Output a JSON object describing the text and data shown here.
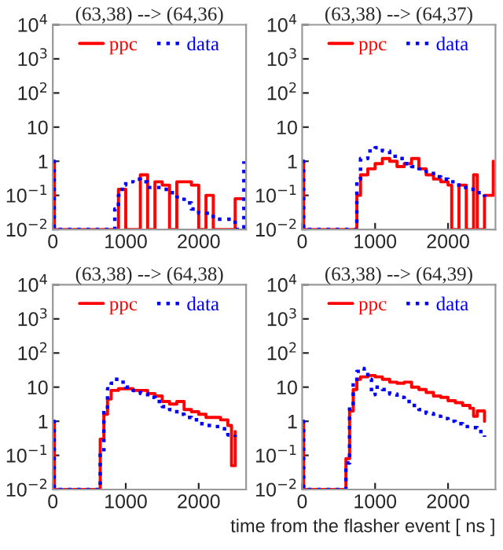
{
  "chart_data": [
    {
      "type": "step",
      "log": true,
      "title": "(63,38) --> (64,36)",
      "legend": "top",
      "grid": false,
      "xlim": [
        0,
        2650
      ],
      "ylim": [
        0.01,
        10000
      ],
      "xticks": [
        0,
        1000,
        2000
      ],
      "yticks": [
        {
          "value": 0.01,
          "label": "10$^{−2}$"
        },
        {
          "value": 0.1,
          "label": "10$^{−1}$"
        },
        1,
        10,
        {
          "value": 100,
          "label": "10$^{2}$"
        },
        {
          "value": 1000,
          "label": "10$^{3}$"
        },
        {
          "value": 10000,
          "label": "10$^{4}$"
        }
      ],
      "series": [
        {
          "name": "ppc",
          "color": "#ff0000",
          "line_style": "solid",
          "x": [
            0,
            20,
            900,
            1000,
            1200,
            1300,
            1400,
            1500,
            1600,
            1700,
            1800,
            1900,
            2000,
            2100,
            2200,
            2500,
            2600
          ],
          "values": [
            1,
            0.01,
            0.15,
            0.01,
            0.4,
            0.01,
            0.25,
            0.2,
            0.01,
            0.25,
            0.25,
            0.2,
            0.01,
            0.1,
            0.01,
            0.08,
            0.08
          ]
        },
        {
          "name": "data",
          "color": "#0000ff",
          "line_style": "dotted",
          "x": [
            0,
            20,
            800,
            850,
            900,
            950,
            1000,
            1100,
            1200,
            1300,
            1400,
            1500,
            1600,
            1700,
            1800,
            1900,
            2000,
            2100,
            2200,
            2300,
            2400,
            2500,
            2620
          ],
          "values": [
            1,
            0.01,
            0.01,
            0.04,
            0.1,
            0.2,
            0.25,
            0.3,
            0.25,
            0.17,
            0.17,
            0.15,
            0.12,
            0.09,
            0.06,
            0.04,
            0.03,
            0.03,
            0.02,
            0.02,
            0.02,
            0.01,
            1
          ]
        }
      ]
    },
    {
      "type": "step",
      "log": true,
      "title": "(63,38) --> (64,37)",
      "legend": "top",
      "grid": false,
      "xlim": [
        0,
        2650
      ],
      "ylim": [
        0.01,
        10000
      ],
      "xticks": [
        0,
        1000,
        2000
      ],
      "yticks": [
        {
          "value": 0.01,
          "label": "10$^{−2}$"
        },
        {
          "value": 0.1,
          "label": "10$^{−1}$"
        },
        1,
        10,
        {
          "value": 100,
          "label": "10$^{2}$"
        },
        {
          "value": 1000,
          "label": "10$^{3}$"
        },
        {
          "value": 10000,
          "label": "10$^{4}$"
        }
      ],
      "series": [
        {
          "name": "ppc",
          "color": "#ff0000",
          "line_style": "solid",
          "x": [
            0,
            20,
            730,
            750,
            800,
            900,
            1000,
            1100,
            1200,
            1300,
            1400,
            1500,
            1600,
            1700,
            1800,
            1900,
            2000,
            2050,
            2150,
            2250,
            2350,
            2400,
            2500,
            2620
          ],
          "values": [
            1,
            0.01,
            0.01,
            0.1,
            0.4,
            0.6,
            0.85,
            1.2,
            1,
            0.7,
            0.85,
            1.2,
            0.6,
            0.4,
            0.3,
            0.25,
            0.2,
            0.01,
            0.2,
            0.01,
            0.4,
            0.01,
            0.1,
            1
          ]
        },
        {
          "name": "data",
          "color": "#0000ff",
          "line_style": "dotted",
          "x": [
            0,
            20,
            700,
            750,
            800,
            900,
            1000,
            1100,
            1200,
            1300,
            1400,
            1500,
            1600,
            1700,
            1800,
            1900,
            2000,
            2100,
            2200,
            2300,
            2400,
            2500
          ],
          "values": [
            1,
            0.01,
            0.01,
            0.3,
            1.2,
            2,
            2.5,
            2,
            1.4,
            1.2,
            0.85,
            0.7,
            0.6,
            0.5,
            0.35,
            0.3,
            0.25,
            0.2,
            0.17,
            0.15,
            0.12,
            0.09
          ]
        }
      ]
    },
    {
      "type": "step",
      "log": true,
      "title": "(63,38) --> (64,38)",
      "legend": "top",
      "grid": false,
      "xlim": [
        0,
        2650
      ],
      "ylim": [
        0.01,
        10000
      ],
      "xticks": [
        0,
        1000,
        2000
      ],
      "yticks": [
        {
          "value": 0.01,
          "label": "10$^{−2}$"
        },
        {
          "value": 0.1,
          "label": "10$^{−1}$"
        },
        1,
        10,
        {
          "value": 100,
          "label": "10$^{2}$"
        },
        {
          "value": 1000,
          "label": "10$^{3}$"
        },
        {
          "value": 10000,
          "label": "10$^{4}$"
        }
      ],
      "series": [
        {
          "name": "ppc",
          "color": "#ff0000",
          "line_style": "solid",
          "x": [
            0,
            20,
            630,
            650,
            700,
            750,
            800,
            900,
            1000,
            1100,
            1200,
            1300,
            1400,
            1500,
            1600,
            1700,
            1800,
            1900,
            2000,
            2100,
            2200,
            2300,
            2400,
            2450,
            2500
          ],
          "values": [
            1,
            0.01,
            0.01,
            0.3,
            1.6,
            4.5,
            8,
            9,
            9,
            8,
            8,
            6.5,
            5.5,
            3.8,
            3.2,
            3.8,
            2.2,
            1.9,
            1.6,
            1.3,
            1.3,
            1.1,
            0.75,
            0.05,
            0.5
          ]
        },
        {
          "name": "data",
          "color": "#0000ff",
          "line_style": "dotted",
          "x": [
            0,
            20,
            630,
            650,
            700,
            750,
            800,
            850,
            900,
            1000,
            1100,
            1200,
            1300,
            1400,
            1500,
            1600,
            1700,
            1800,
            1900,
            2000,
            2100,
            2200,
            2300,
            2400,
            2500
          ],
          "values": [
            1,
            0.01,
            0.01,
            0.13,
            2.2,
            9,
            13,
            17,
            14,
            10,
            8,
            6.5,
            5,
            3.8,
            2.7,
            2.2,
            1.6,
            1.3,
            1.1,
            0.85,
            0.75,
            0.7,
            0.6,
            0.4,
            0.35
          ]
        }
      ]
    },
    {
      "type": "step",
      "log": true,
      "title": "(63,38) --> (64,39)",
      "xlabel": "time from the flasher event [ ns ]",
      "legend": "top",
      "grid": false,
      "xlim": [
        0,
        2650
      ],
      "ylim": [
        0.01,
        10000
      ],
      "xticks": [
        0,
        1000,
        2000
      ],
      "yticks": [
        {
          "value": 0.01,
          "label": "10$^{−2}$"
        },
        {
          "value": 0.1,
          "label": "10$^{−1}$"
        },
        1,
        10,
        {
          "value": 100,
          "label": "10$^{2}$"
        },
        {
          "value": 1000,
          "label": "10$^{3}$"
        },
        {
          "value": 10000,
          "label": "10$^{4}$"
        }
      ],
      "series": [
        {
          "name": "ppc",
          "color": "#ff0000",
          "line_style": "solid",
          "x": [
            0,
            20,
            580,
            600,
            650,
            700,
            750,
            800,
            900,
            1000,
            1100,
            1200,
            1300,
            1400,
            1500,
            1600,
            1700,
            1800,
            1900,
            2000,
            2100,
            2200,
            2300,
            2350,
            2400,
            2500
          ],
          "values": [
            1,
            0.01,
            0.01,
            0.08,
            2,
            8.5,
            17,
            20,
            22,
            20,
            17,
            14,
            13,
            14,
            10,
            8.5,
            7,
            5.5,
            5,
            4,
            3.5,
            2.9,
            2.4,
            1.4,
            2,
            1
          ]
        },
        {
          "name": "data",
          "color": "#0000ff",
          "line_style": "dotted",
          "x": [
            0,
            20,
            580,
            600,
            650,
            700,
            750,
            800,
            850,
            900,
            950,
            1000,
            1100,
            1200,
            1300,
            1400,
            1500,
            1600,
            1700,
            1800,
            1900,
            2000,
            2100,
            2200,
            2300,
            2400,
            2500
          ],
          "values": [
            1,
            0.01,
            0.01,
            0.06,
            2.9,
            14,
            29,
            35,
            29,
            17,
            6,
            10,
            8.5,
            6.3,
            5,
            3.8,
            2.9,
            2.2,
            1.7,
            1.4,
            1.2,
            1,
            0.85,
            0.7,
            0.65,
            0.5,
            0.35
          ]
        }
      ]
    }
  ]
}
